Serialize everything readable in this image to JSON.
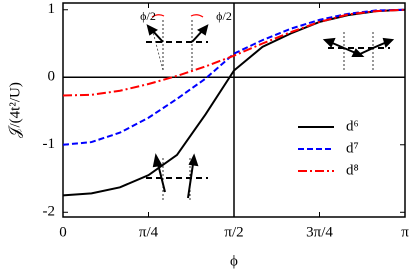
{
  "chart_data": {
    "type": "line",
    "x_label": "ϕ",
    "y_label": "𝒥/(4t²/U)",
    "x": [
      0,
      0.2618,
      0.5236,
      0.7854,
      1.0472,
      1.309,
      1.5708,
      1.8326,
      2.0944,
      2.3562,
      2.618,
      2.8798,
      3.1416
    ],
    "series": [
      {
        "name": "d⁶",
        "color": "#000000",
        "dash": "solid",
        "values": [
          -1.75,
          -1.72,
          -1.63,
          -1.45,
          -1.15,
          -0.55,
          0.1,
          0.45,
          0.65,
          0.82,
          0.92,
          0.98,
          1.0
        ]
      },
      {
        "name": "d⁷",
        "color": "#0000ff",
        "dash": "dashed",
        "values": [
          -1.0,
          -0.96,
          -0.82,
          -0.6,
          -0.32,
          -0.02,
          0.35,
          0.55,
          0.72,
          0.85,
          0.94,
          0.99,
          1.0
        ]
      },
      {
        "name": "d⁸",
        "color": "#ff0000",
        "dash": "dashdot",
        "values": [
          -0.27,
          -0.26,
          -0.2,
          -0.1,
          0.02,
          0.16,
          0.32,
          0.5,
          0.67,
          0.82,
          0.93,
          0.98,
          1.0
        ]
      }
    ],
    "xlim": [
      0,
      3.1416
    ],
    "ylim": [
      -2.07,
      1.1
    ],
    "xticks": [
      {
        "value": 0,
        "label": "0"
      },
      {
        "value": 0.7854,
        "label": "π/4"
      },
      {
        "value": 1.5708,
        "label": "π/2"
      },
      {
        "value": 2.3562,
        "label": "3π/4"
      },
      {
        "value": 3.1416,
        "label": "π"
      }
    ],
    "yticks": [
      -2,
      -1,
      0,
      1
    ],
    "reference_lines": {
      "x": 1.5708,
      "y": 0
    },
    "legend": "right",
    "annotations": [
      "ϕ/2",
      "ϕ/2"
    ]
  }
}
